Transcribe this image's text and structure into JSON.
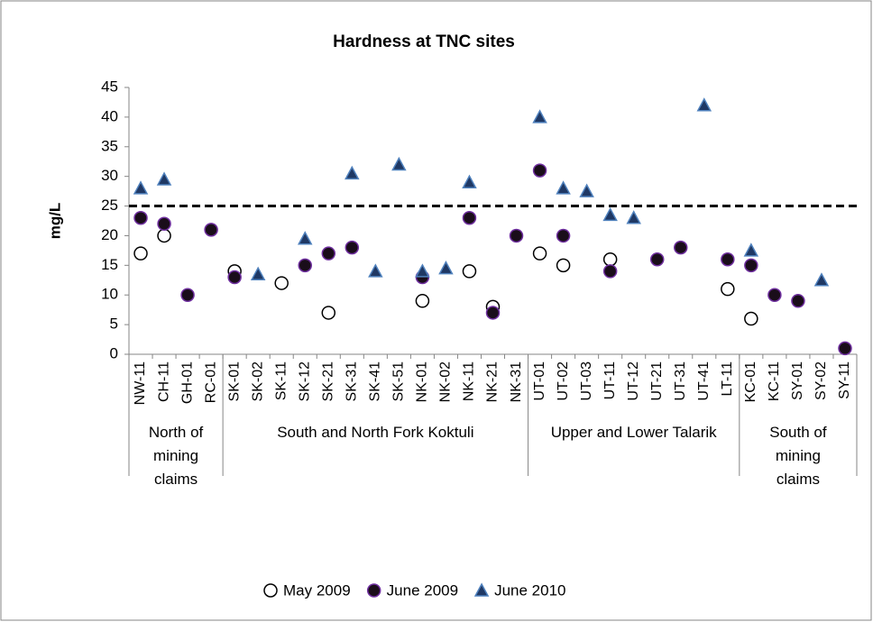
{
  "chart_data": {
    "type": "scatter",
    "title": "Hardness at TNC sites",
    "y_label": "mg/L",
    "groups": [
      {
        "label": "North of mining claims",
        "categories": [
          "NW-11",
          "CH-11",
          "GH-01",
          "RC-01"
        ]
      },
      {
        "label": "South and North Fork Koktuli",
        "categories": [
          "SK-01",
          "SK-02",
          "SK-11",
          "SK-12",
          "SK-21",
          "SK-31",
          "SK-41",
          "SK-51",
          "NK-01",
          "NK-02",
          "NK-11",
          "NK-21",
          "NK-31"
        ]
      },
      {
        "label": "Upper and Lower Talarik",
        "categories": [
          "UT-01",
          "UT-02",
          "UT-03",
          "UT-11",
          "UT-12",
          "UT-21",
          "UT-31",
          "UT-41",
          "LT-11"
        ]
      },
      {
        "label": "South of mining claims",
        "categories": [
          "KC-01",
          "KC-11",
          "SY-01",
          "SY-02",
          "SY-11"
        ]
      }
    ],
    "series": [
      {
        "name": "May 2009",
        "marker": "circle",
        "color": "#ffffff",
        "stroke": "#000000",
        "values": [
          17,
          20,
          null,
          null,
          14,
          null,
          12,
          null,
          7,
          null,
          null,
          null,
          9,
          null,
          14,
          8,
          null,
          17,
          15,
          null,
          16,
          null,
          null,
          null,
          null,
          11,
          6,
          null,
          null,
          null,
          null
        ]
      },
      {
        "name": "June 2009",
        "marker": "circle",
        "color": "#1a0d1a",
        "stroke": "#7030a0",
        "values": [
          23,
          22,
          10,
          21,
          13,
          null,
          null,
          15,
          17,
          18,
          null,
          null,
          13,
          null,
          23,
          7,
          20,
          31,
          20,
          null,
          14,
          null,
          16,
          18,
          null,
          16,
          15,
          10,
          9,
          null,
          1
        ]
      },
      {
        "name": "June 2010",
        "marker": "triangle",
        "color": "#1f3864",
        "stroke": "#4f81bd",
        "values": [
          28,
          29.5,
          null,
          null,
          null,
          13.5,
          null,
          19.5,
          null,
          30.5,
          14,
          32,
          14,
          14.5,
          29,
          null,
          null,
          40,
          28,
          27.5,
          23.5,
          23,
          null,
          null,
          42,
          null,
          17.5,
          null,
          null,
          12.5,
          null
        ]
      }
    ],
    "reference_line": 25,
    "ylim": [
      0,
      45
    ],
    "yticks": [
      0,
      5,
      10,
      15,
      20,
      25,
      30,
      35,
      40,
      45
    ],
    "legend": "bottom"
  }
}
